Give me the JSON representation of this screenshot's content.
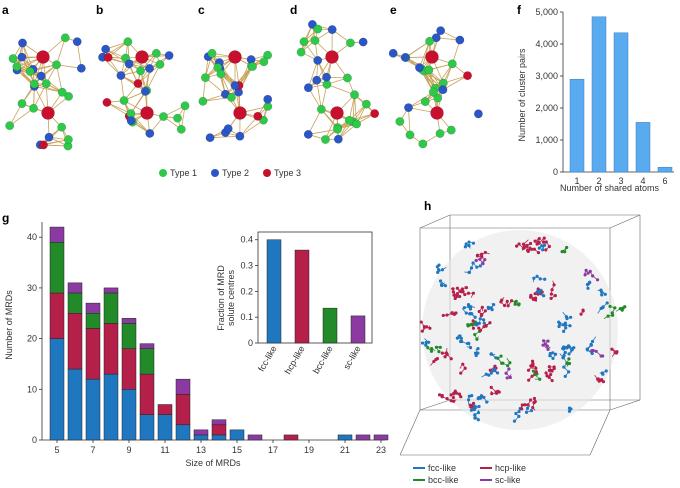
{
  "panel_labels": {
    "a": "a",
    "b": "b",
    "c": "c",
    "d": "d",
    "e": "e",
    "f": "f",
    "g": "g",
    "h": "h"
  },
  "atom_legend": [
    {
      "label": "Type 1",
      "color": "#2fc94a"
    },
    {
      "label": "Type 2",
      "color": "#2a56c8"
    },
    {
      "label": "Type 3",
      "color": "#c8102e"
    }
  ],
  "chart_data": [
    {
      "id": "f",
      "type": "bar",
      "categories": [
        "1",
        "2",
        "3",
        "4",
        "6"
      ],
      "values": [
        2900,
        4850,
        4350,
        1550,
        150
      ],
      "xlabel": "Number of shared atoms",
      "ylabel": "Number of cluster pairs",
      "yticks": [
        "0",
        "1,000",
        "2,000",
        "3,000",
        "4,000",
        "5,000"
      ],
      "ylim": [
        0,
        5000
      ],
      "color": "#5aaaf0"
    },
    {
      "id": "g",
      "type": "bar",
      "stacked": true,
      "x": [
        5,
        6,
        7,
        8,
        9,
        10,
        11,
        12,
        13,
        14,
        15,
        16,
        17,
        18,
        19,
        20,
        21,
        22,
        23
      ],
      "xticks": [
        "5",
        "7",
        "9",
        "11",
        "13",
        "15",
        "17",
        "19",
        "21",
        "23"
      ],
      "yticks": [
        "0",
        "10",
        "20",
        "30",
        "40"
      ],
      "ylim": [
        0,
        43
      ],
      "xlabel": "Size of MRDs",
      "ylabel": "Number of MRDs",
      "series": [
        {
          "color": "#1f77c0",
          "values": [
            20,
            14,
            12,
            13,
            10,
            5,
            5,
            3,
            1,
            1,
            2,
            0,
            0,
            0,
            0,
            0,
            1,
            0,
            0
          ]
        },
        {
          "color": "#b5204a",
          "values": [
            9,
            11,
            10,
            10,
            8,
            8,
            2,
            6,
            0,
            2,
            0,
            0,
            0,
            1,
            0,
            0,
            0,
            0,
            0
          ]
        },
        {
          "color": "#238a2a",
          "values": [
            10,
            4,
            3,
            6,
            5,
            5,
            0,
            0,
            0,
            0,
            0,
            0,
            0,
            0,
            0,
            0,
            0,
            0,
            0
          ]
        },
        {
          "color": "#8a3aa0",
          "values": [
            3,
            2,
            2,
            1,
            1,
            1,
            0,
            3,
            1,
            1,
            0,
            1,
            0,
            0,
            0,
            0,
            0,
            1,
            1
          ]
        }
      ]
    },
    {
      "id": "g-inset",
      "type": "bar",
      "categories": [
        "fcc-like",
        "hcp-like",
        "bcc-like",
        "sc-like"
      ],
      "values": [
        0.4,
        0.36,
        0.135,
        0.105
      ],
      "colors": [
        "#1f77c0",
        "#b5204a",
        "#238a2a",
        "#8a3aa0"
      ],
      "ylabel": "Fraction of MRD solute centres",
      "yticks": [
        "0",
        "0.1",
        "0.2",
        "0.3",
        "0.4"
      ],
      "ylim": [
        0,
        0.43
      ]
    }
  ],
  "g_inset_ylabel_lines": [
    "Fraction of MRD",
    "solute centres"
  ],
  "h_legend": [
    {
      "label": "fcc-like",
      "color": "#1f77c0"
    },
    {
      "label": "hcp-like",
      "color": "#b5204a"
    },
    {
      "label": "bcc-like",
      "color": "#238a2a"
    },
    {
      "label": "sc-like",
      "color": "#8a3aa0"
    }
  ],
  "colors": {
    "type1": "#2fc94a",
    "type2": "#2a56c8",
    "type3": "#c8102e",
    "bond": "#c9a25a"
  }
}
